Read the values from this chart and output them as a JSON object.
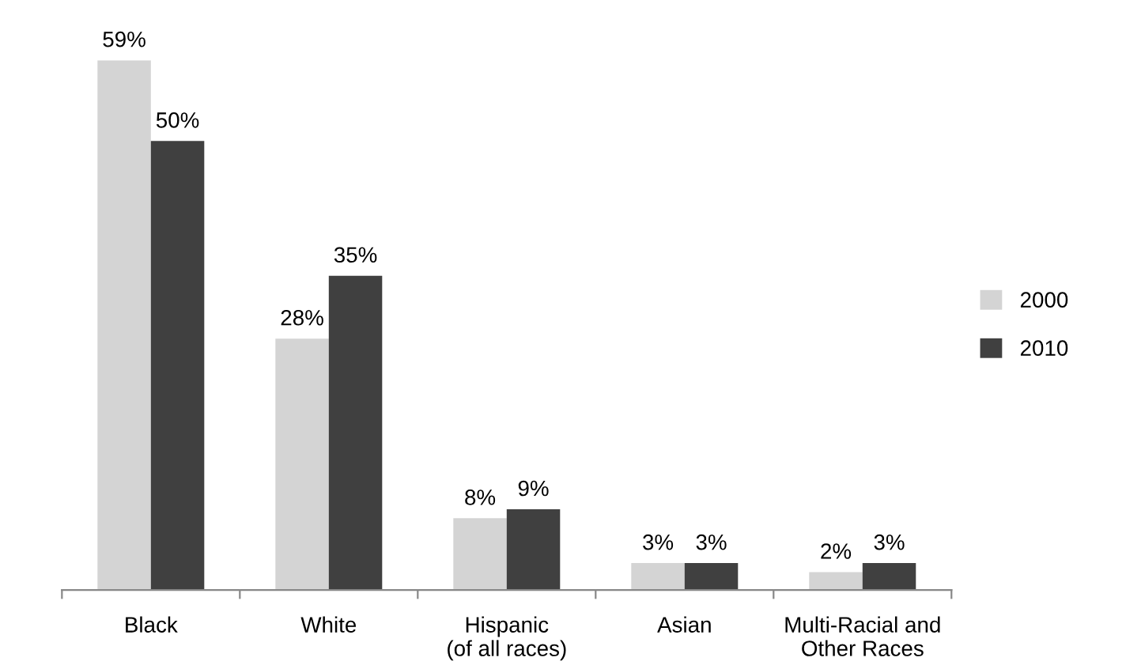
{
  "chart_data": {
    "type": "bar",
    "categories": [
      "Black",
      "White",
      "Hispanic\n(of all races)",
      "Asian",
      "Multi-Racial and\nOther Races"
    ],
    "series": [
      {
        "name": "2000",
        "color": "#d4d4d4",
        "values": [
          59,
          28,
          8,
          3,
          2
        ],
        "value_labels": [
          "59%",
          "28%",
          "8%",
          "3%",
          "2%"
        ]
      },
      {
        "name": "2010",
        "color": "#404040",
        "values": [
          50,
          35,
          9,
          3,
          3
        ],
        "value_labels": [
          "50%",
          "35%",
          "9%",
          "3%",
          "3%"
        ]
      }
    ],
    "legend": "right",
    "grid": false
  }
}
